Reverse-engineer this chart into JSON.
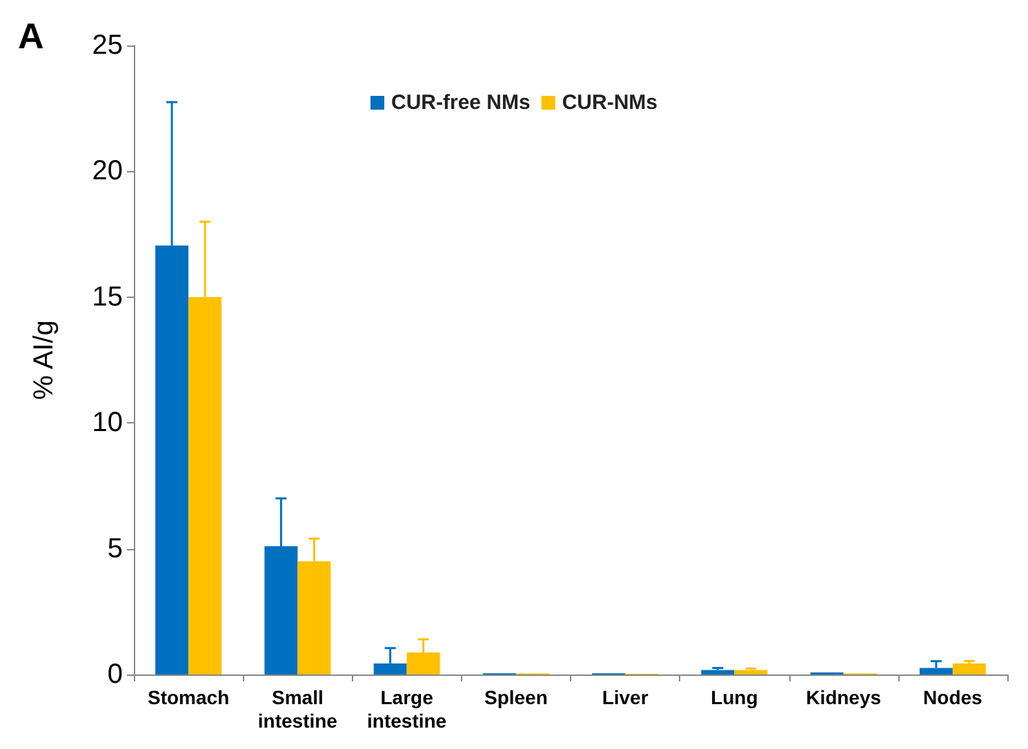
{
  "chart_data": {
    "type": "bar",
    "title": "A",
    "ylabel": "% AI/g",
    "categories": [
      "Stomach",
      "Small\nintestine",
      "Large\nintestine",
      "Spleen",
      "Liver",
      "Lung",
      "Kidneys",
      "Nodes"
    ],
    "series": [
      {
        "name": "CUR-free NMs",
        "color": "#0070c0",
        "values": [
          17.05,
          5.1,
          0.44,
          0.05,
          0.05,
          0.18,
          0.08,
          0.26
        ],
        "errors": [
          [
            17.05,
            22.75
          ],
          [
            5.1,
            7.0
          ],
          [
            0.44,
            1.05
          ],
          null,
          null,
          [
            0.18,
            0.26
          ],
          null,
          [
            0.26,
            0.53
          ]
        ]
      },
      {
        "name": "CUR-NMs",
        "color": "#ffc000",
        "values": [
          15.0,
          4.5,
          0.88,
          0.04,
          0.03,
          0.18,
          0.04,
          0.44
        ],
        "errors": [
          [
            15.0,
            18.0
          ],
          [
            4.5,
            5.4
          ],
          [
            0.88,
            1.4
          ],
          null,
          null,
          [
            0.18,
            0.24
          ],
          null,
          [
            0.44,
            0.54
          ]
        ]
      }
    ],
    "ylim": [
      0,
      25
    ],
    "yticks": [
      0,
      5,
      10,
      15,
      20,
      25
    ],
    "grid": false,
    "legend": "top"
  }
}
